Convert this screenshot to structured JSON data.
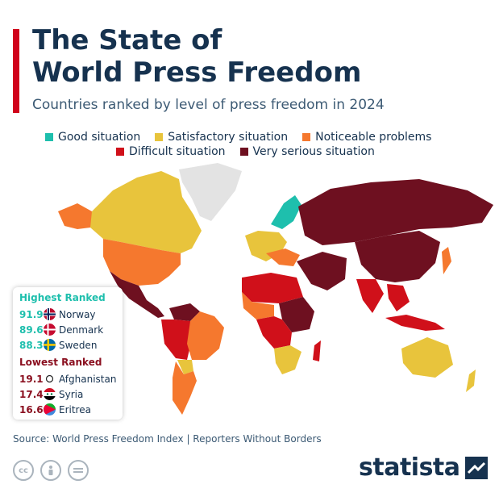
{
  "title_line1": "The State of",
  "title_line2": "World Press Freedom",
  "subtitle": "Countries ranked by level of press freedom in 2024",
  "legend": [
    {
      "label": "Good situation",
      "color": "#1ebfad"
    },
    {
      "label": "Satisfactory situation",
      "color": "#e8c43c"
    },
    {
      "label": "Noticeable problems",
      "color": "#f5782e"
    },
    {
      "label": "Difficult situation",
      "color": "#d0101a"
    },
    {
      "label": "Very serious situation",
      "color": "#6e1020"
    }
  ],
  "no_data_color": "#e3e3e3",
  "highest": {
    "heading": "Highest Ranked",
    "color": "#1ebfad",
    "rows": [
      {
        "score": "91.9",
        "country": "Norway",
        "flag": "norway-flag-icon"
      },
      {
        "score": "89.6",
        "country": "Denmark",
        "flag": "denmark-flag-icon"
      },
      {
        "score": "88.3",
        "country": "Sweden",
        "flag": "sweden-flag-icon"
      }
    ]
  },
  "lowest": {
    "heading": "Lowest Ranked",
    "color": "#8b1020",
    "rows": [
      {
        "score": "19.1",
        "country": "Afghanistan",
        "flag": "afghanistan-flag-icon"
      },
      {
        "score": "17.4",
        "country": "Syria",
        "flag": "syria-flag-icon"
      },
      {
        "score": "16.6",
        "country": "Eritrea",
        "flag": "eritrea-flag-icon"
      }
    ]
  },
  "source": "Source: World Press Freedom Index | Reporters Without Borders",
  "license_icons": [
    "creative-commons-icon",
    "attribution-icon",
    "no-derivatives-icon"
  ],
  "brand": "statista"
}
